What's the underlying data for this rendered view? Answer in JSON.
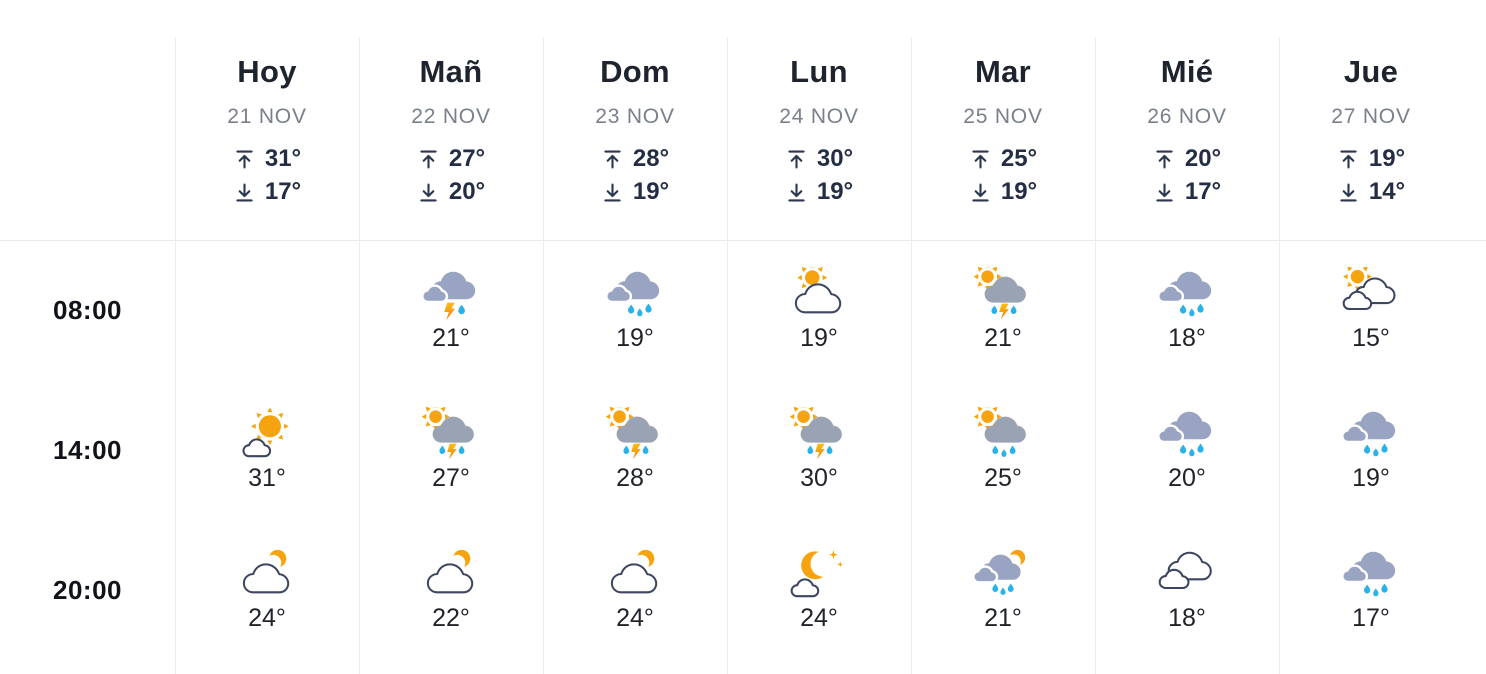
{
  "colors": {
    "cloud_blue": "#99A3C2",
    "cloud_gray": "#9AA3B4",
    "sun": "#F5A40F",
    "drop": "#29B1EA",
    "bolt_top": "#FFC412",
    "bolt_bottom": "#F58114",
    "cloud_outline": "#3D4660",
    "arrow": "#2A3550",
    "divider": "#ECECF2",
    "day_name_text": "#1E242E",
    "date_text": "#7A808B",
    "hilo_text": "#232D43",
    "time_text": "#101318",
    "temp_text": "#202329"
  },
  "days": [
    {
      "label": "Hoy",
      "date": "21 NOV",
      "high": "31°",
      "low": "17°"
    },
    {
      "label": "Mañ",
      "date": "22 NOV",
      "high": "27°",
      "low": "20°"
    },
    {
      "label": "Dom",
      "date": "23 NOV",
      "high": "28°",
      "low": "19°"
    },
    {
      "label": "Lun",
      "date": "24 NOV",
      "high": "30°",
      "low": "19°"
    },
    {
      "label": "Mar",
      "date": "25 NOV",
      "high": "25°",
      "low": "19°"
    },
    {
      "label": "Mié",
      "date": "26 NOV",
      "high": "20°",
      "low": "17°"
    },
    {
      "label": "Jue",
      "date": "27 NOV",
      "high": "19°",
      "low": "14°"
    }
  ],
  "rows": [
    {
      "time": "08:00",
      "cells": [
        {
          "icon": null,
          "temp": ""
        },
        {
          "icon": "thunderstorm",
          "temp": "21°"
        },
        {
          "icon": "rain",
          "temp": "19°"
        },
        {
          "icon": "sun-behind-cloud",
          "temp": "19°"
        },
        {
          "icon": "sun-thunderstorm",
          "temp": "21°"
        },
        {
          "icon": "rain",
          "temp": "18°"
        },
        {
          "icon": "sun-behind-clouds",
          "temp": "15°"
        }
      ]
    },
    {
      "time": "14:00",
      "cells": [
        {
          "icon": "mostly-sunny",
          "temp": "31°"
        },
        {
          "icon": "sun-thunderstorm",
          "temp": "27°"
        },
        {
          "icon": "sun-thunderstorm",
          "temp": "28°"
        },
        {
          "icon": "sun-thunderstorm",
          "temp": "30°"
        },
        {
          "icon": "sun-rain",
          "temp": "25°"
        },
        {
          "icon": "rain",
          "temp": "20°"
        },
        {
          "icon": "rain",
          "temp": "19°"
        }
      ]
    },
    {
      "time": "20:00",
      "cells": [
        {
          "icon": "cloud-moon",
          "temp": "24°"
        },
        {
          "icon": "cloud-moon",
          "temp": "22°"
        },
        {
          "icon": "cloud-moon",
          "temp": "24°"
        },
        {
          "icon": "moon-stars-cloud",
          "temp": "24°"
        },
        {
          "icon": "rain-moon",
          "temp": "21°"
        },
        {
          "icon": "cloudy",
          "temp": "18°"
        },
        {
          "icon": "rain",
          "temp": "17°"
        }
      ]
    }
  ]
}
